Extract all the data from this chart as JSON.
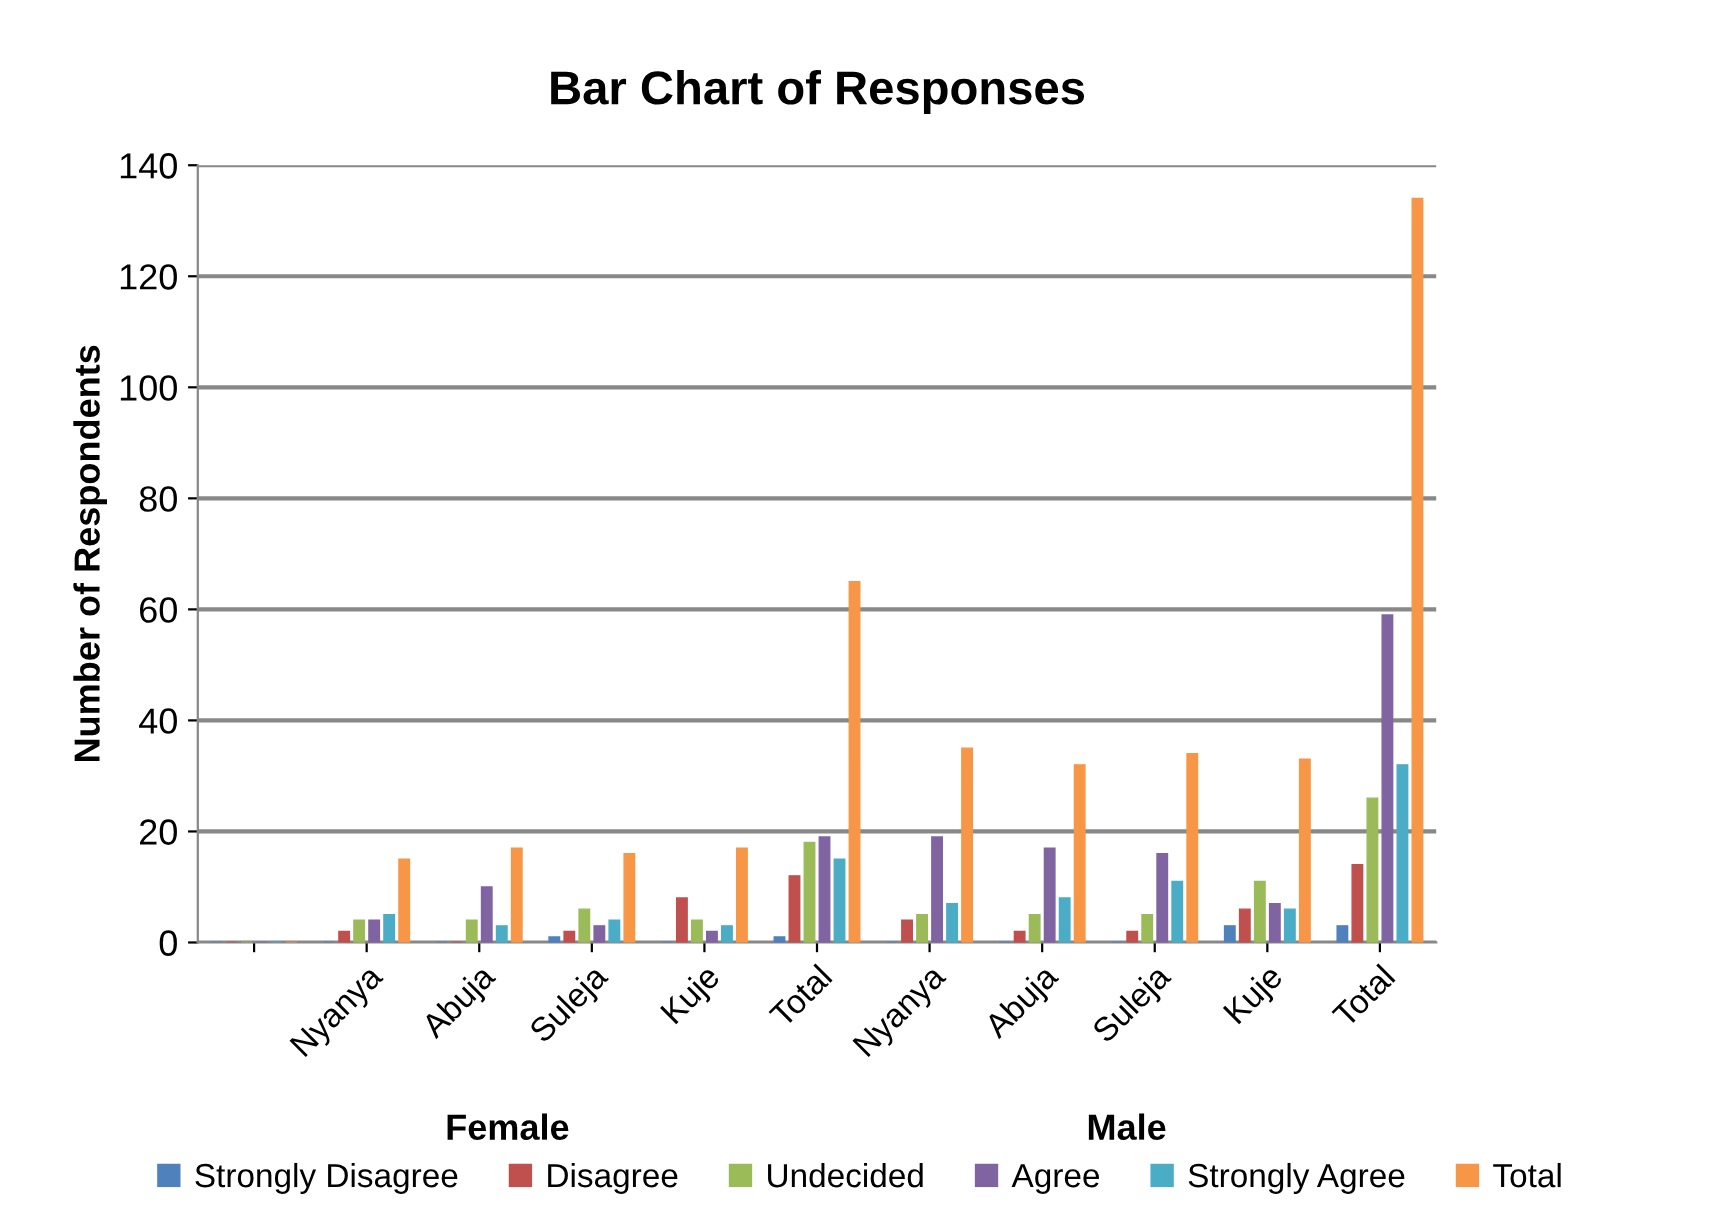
{
  "chart_data": {
    "type": "bar",
    "title": "Bar Chart of Responses",
    "ylabel": "Number of Respondents",
    "categories": [
      null,
      "Nyanya",
      "Abuja",
      "Suleja",
      "Kuje",
      "Total",
      "Nyanya",
      "Abuja",
      "Suleja",
      "Kuje",
      "Total"
    ],
    "series": [
      {
        "name": "Strongly Disagree",
        "color": "#4f81bd",
        "values": [
          0,
          0,
          0,
          1,
          0,
          1,
          0,
          0,
          0,
          3,
          3
        ]
      },
      {
        "name": "Disagree",
        "color": "#c0504d",
        "values": [
          0,
          2,
          0,
          2,
          8,
          12,
          4,
          2,
          2,
          6,
          14
        ]
      },
      {
        "name": "Undecided",
        "color": "#9bbb59",
        "values": [
          0,
          4,
          4,
          6,
          4,
          18,
          5,
          5,
          5,
          11,
          26
        ]
      },
      {
        "name": "Agree",
        "color": "#8064a2",
        "values": [
          0,
          4,
          10,
          3,
          2,
          19,
          19,
          17,
          16,
          7,
          59
        ]
      },
      {
        "name": "Strongly Agree",
        "color": "#4bacc6",
        "values": [
          0,
          5,
          3,
          4,
          3,
          15,
          7,
          8,
          11,
          6,
          32
        ]
      },
      {
        "name": "Total",
        "color": "#f79646",
        "values": [
          0,
          15,
          17,
          16,
          17,
          65,
          35,
          32,
          34,
          33,
          134
        ]
      }
    ],
    "annotations": [
      "Female",
      "Male"
    ],
    "ylim": [
      0,
      140
    ],
    "yticks": [
      0,
      20,
      40,
      60,
      80,
      100,
      120,
      140
    ],
    "grid": "y",
    "legend": "bottom"
  }
}
